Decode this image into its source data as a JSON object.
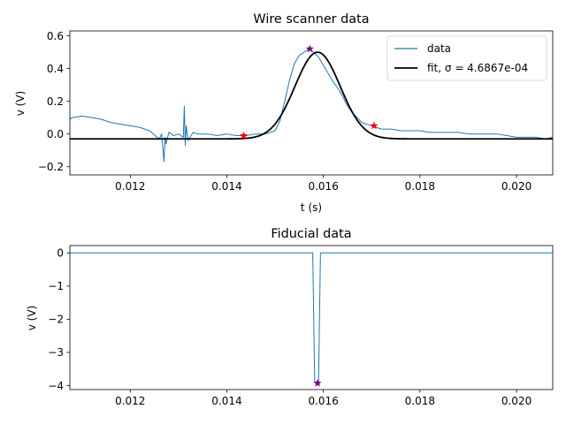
{
  "chart_data": [
    {
      "type": "line",
      "title": "Wire scanner data",
      "xlabel": "t (s)",
      "ylabel": "v (V)",
      "xlim": [
        0.01075,
        0.02075
      ],
      "ylim": [
        -0.25,
        0.63
      ],
      "xticks": [
        "0.012",
        "0.014",
        "0.016",
        "0.018",
        "0.020"
      ],
      "xtick_values": [
        0.012,
        0.014,
        0.016,
        0.018,
        0.02
      ],
      "yticks": [
        "−0.2",
        "0.0",
        "0.2",
        "0.4",
        "0.6"
      ],
      "ytick_values": [
        -0.2,
        0.0,
        0.2,
        0.4,
        0.6
      ],
      "legend_position": "upper right",
      "series": [
        {
          "name": "data",
          "color": "#1f77b4",
          "x": [
            0.01075,
            0.0108,
            0.011,
            0.0112,
            0.0114,
            0.0116,
            0.0118,
            0.012,
            0.0122,
            0.0124,
            0.0126,
            0.01265,
            0.0127,
            0.01272,
            0.01274,
            0.0128,
            0.0129,
            0.013,
            0.0131,
            0.01312,
            0.01314,
            0.01316,
            0.0132,
            0.0133,
            0.0134,
            0.0136,
            0.0138,
            0.014,
            0.0142,
            0.0144,
            0.0146,
            0.0148,
            0.015,
            0.0151,
            0.0152,
            0.0153,
            0.0154,
            0.0155,
            0.0156,
            0.0157,
            0.0158,
            0.0159,
            0.016,
            0.0161,
            0.0162,
            0.0163,
            0.0164,
            0.0165,
            0.0166,
            0.0167,
            0.0168,
            0.0169,
            0.017,
            0.0171,
            0.0172,
            0.0174,
            0.0176,
            0.0178,
            0.018,
            0.0182,
            0.0184,
            0.0186,
            0.0188,
            0.019,
            0.0192,
            0.0194,
            0.0196,
            0.0198,
            0.02,
            0.0202,
            0.0204,
            0.0206,
            0.02075
          ],
          "y": [
            0.09,
            0.1,
            0.11,
            0.1,
            0.09,
            0.07,
            0.06,
            0.05,
            0.04,
            0.02,
            -0.03,
            0.0,
            -0.17,
            -0.02,
            -0.06,
            0.01,
            -0.01,
            0.0,
            -0.02,
            0.17,
            -0.07,
            0.05,
            -0.04,
            0.01,
            0.0,
            0.0,
            -0.01,
            0.0,
            -0.01,
            -0.01,
            0.0,
            0.0,
            0.02,
            0.08,
            0.2,
            0.33,
            0.43,
            0.48,
            0.5,
            0.52,
            0.5,
            0.47,
            0.42,
            0.37,
            0.32,
            0.28,
            0.23,
            0.17,
            0.13,
            0.1,
            0.07,
            0.06,
            0.05,
            0.04,
            0.03,
            0.03,
            0.02,
            0.02,
            0.02,
            0.01,
            0.01,
            0.01,
            0.01,
            0.0,
            0.0,
            0.0,
            0.0,
            -0.01,
            -0.02,
            -0.02,
            -0.02,
            -0.03,
            -0.02
          ]
        },
        {
          "name": "fit, σ = 4.6867e-04",
          "color": "#000000",
          "model": "gaussian",
          "mu": 0.01588,
          "sigma": 0.00046867,
          "amplitude": 0.53,
          "offset": -0.03
        }
      ],
      "markers": [
        {
          "x": 0.01435,
          "y": -0.01,
          "color": "#ff0000",
          "shape": "star"
        },
        {
          "x": 0.01705,
          "y": 0.05,
          "color": "#ff0000",
          "shape": "star"
        },
        {
          "x": 0.01572,
          "y": 0.52,
          "color": "#800080",
          "shape": "star"
        }
      ]
    },
    {
      "type": "line",
      "title": "Fiducial data",
      "xlabel": "",
      "ylabel": "v (V)",
      "xlim": [
        0.01075,
        0.02075
      ],
      "ylim": [
        -4.12,
        0.22
      ],
      "xticks": [
        "0.012",
        "0.014",
        "0.016",
        "0.018",
        "0.020"
      ],
      "xtick_values": [
        0.012,
        0.014,
        0.016,
        0.018,
        0.02
      ],
      "yticks": [
        "−4",
        "−3",
        "−2",
        "−1",
        "0"
      ],
      "ytick_values": [
        -4,
        -3,
        -2,
        -1,
        0
      ],
      "series": [
        {
          "color": "#1f77b4",
          "x": [
            0.01075,
            0.01578,
            0.01582,
            0.0159,
            0.01594,
            0.02075
          ],
          "y": [
            0.0,
            0.0,
            -3.9,
            -3.9,
            0.0,
            0.0
          ]
        }
      ],
      "markers": [
        {
          "x": 0.01588,
          "y": -3.93,
          "color": "#800080",
          "shape": "star"
        }
      ]
    }
  ]
}
